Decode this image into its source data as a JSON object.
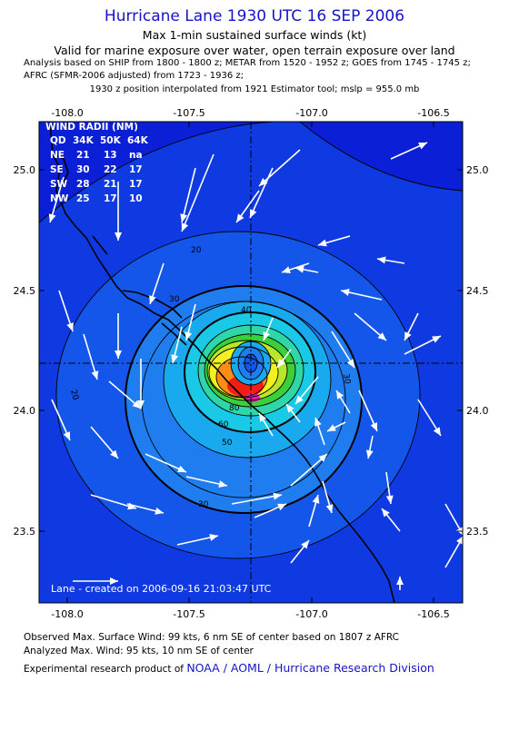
{
  "header": {
    "title": "Hurricane Lane 1930 UTC 16 SEP 2006",
    "subtitle": "Max 1-min sustained surface winds (kt)",
    "validity": "Valid for marine exposure over water, open terrain exposure over land",
    "analysis_line1": "Analysis based on  SHIP from 1800 - 1800 z;  METAR from 1520 - 1952 z;  GOES from 1745 - 1745 z;",
    "analysis_line2": "AFRC (SFMR-2006 adjusted) from 1723 - 1936 z;",
    "position_note": "1930 z position interpolated from 1921 Estimator tool; mslp = 955.0 mb"
  },
  "map": {
    "lon_ticks": [
      "-108.0",
      "-107.5",
      "-107.0",
      "-106.5"
    ],
    "lat_ticks": [
      "25.0",
      "24.5",
      "24.0",
      "23.5"
    ],
    "lon_range": [
      -108.1,
      -106.2
    ],
    "lat_range": [
      23.15,
      25.2
    ],
    "center": {
      "lon": -107.15,
      "lat": 24.2
    },
    "wind_radii": {
      "title": "WIND RADII (NM)",
      "header": [
        "QD",
        "34K",
        "50K",
        "64K"
      ],
      "rows": [
        [
          "NE",
          "21",
          "13",
          "na"
        ],
        [
          "SE",
          "30",
          "22",
          "17"
        ],
        [
          "SW",
          "28",
          "21",
          "17"
        ],
        [
          "NW",
          "25",
          "17",
          "10"
        ]
      ]
    },
    "contour_labels": [
      "20",
      "20",
      "30",
      "30",
      "30",
      "40",
      "50",
      "60",
      "80"
    ],
    "colors": {
      "deep_blue": "#0a1fd6",
      "mid_blue": "#0f47e6",
      "light_blue": "#1f7df0",
      "cyan": "#19c9e6",
      "green": "#3ccf3c",
      "yellow": "#f2f01e",
      "orange": "#ff8c14",
      "red": "#f01e14",
      "magenta": "#e61eb4"
    },
    "created_stamp": "Lane - created on 2006-09-16 21:03:47 UTC"
  },
  "footer": {
    "observed": "Observed Max. Surface Wind: 99 kts, 6 nm SE of center based on 1807 z AFRC",
    "analyzed": "Analyzed Max. Wind: 95 kts, 10 nm SE of center",
    "credit_prefix": "Experimental research product of",
    "credit_org": "NOAA / AOML / Hurricane Research Division"
  }
}
